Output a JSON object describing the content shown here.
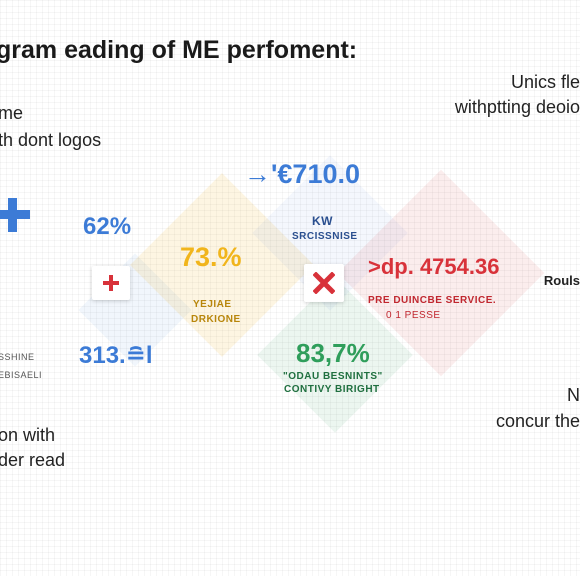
{
  "title": "gram eading of ME perfoment:",
  "left_notes": {
    "top_line1": "me",
    "top_line2": "th dont logos",
    "mid_line1": "SSHINE",
    "mid_line2": "EBISAELI",
    "bottom_line1": "on with",
    "bottom_line2": "der read"
  },
  "right_notes": {
    "top_line1": "Unics fle",
    "top_line2": "withptting deoio",
    "side_label": "Rouls",
    "bottom_line1": "N",
    "bottom_line2": "concur the"
  },
  "metrics": {
    "top_value": "→'€710.0",
    "top_sub1": "KW",
    "top_sub2": "SRCISSNISE",
    "left_top": "62%",
    "left_bottom": "313.≘l",
    "center_yellow": "73.%",
    "center_yellow_sub1": "YEJIAE",
    "center_yellow_sub2": "DRKIONE",
    "green_value": "83,7%",
    "green_sub1": "\"ODAU BESNINTS\"",
    "green_sub2": "CONTIVY BIRIGHT",
    "red_value": ">dp. 4754.36",
    "red_sub1": "PRE DUINCBE SERVICE.",
    "red_sub2": "0 1 PESSE"
  },
  "icons": [
    "plus-icon",
    "plus-icon",
    "close-icon"
  ],
  "colors": {
    "blue": "#3c7bd6",
    "yellow": "#f1b51c",
    "green": "#2f9e5b",
    "red": "#d8323a"
  }
}
